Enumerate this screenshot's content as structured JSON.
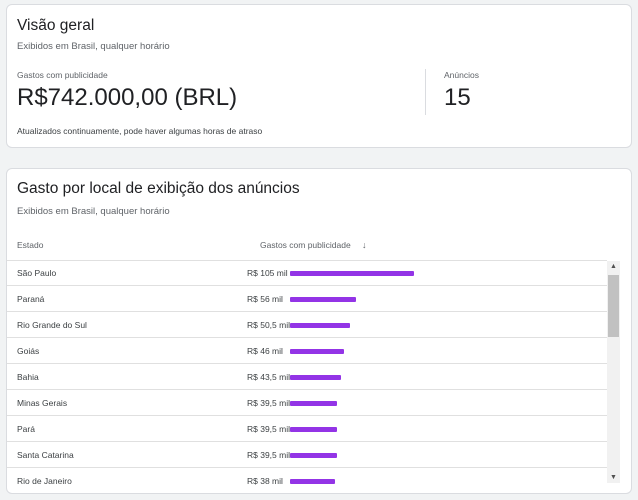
{
  "overview": {
    "title": "Visão geral",
    "subtitle": "Exibidos em Brasil, qualquer horário",
    "spend_label": "Gastos com publicidade",
    "spend_value": "R$742.000,00 (BRL)",
    "ads_label": "Anúncios",
    "ads_value": "15",
    "note": "Atualizados continuamente, pode haver algumas horas de atraso"
  },
  "placement": {
    "title": "Gasto por local de exibição dos anúncios",
    "subtitle": "Exibidos em Brasil, qualquer horário",
    "col_state": "Estado",
    "col_spend": "Gastos com publicidade",
    "sort_icon": "arrow-down-icon",
    "bar_color": "#9334e6",
    "rows": [
      {
        "name": "São Paulo",
        "value_label": "R$ 105 mil",
        "value": 105
      },
      {
        "name": "Paraná",
        "value_label": "R$ 56 mil",
        "value": 56
      },
      {
        "name": "Rio Grande do Sul",
        "value_label": "R$ 50,5 mil",
        "value": 50.5
      },
      {
        "name": "Goiás",
        "value_label": "R$ 46 mil",
        "value": 46
      },
      {
        "name": "Bahia",
        "value_label": "R$ 43,5 mil",
        "value": 43.5
      },
      {
        "name": "Minas Gerais",
        "value_label": "R$ 39,5 mil",
        "value": 39.5
      },
      {
        "name": "Pará",
        "value_label": "R$ 39,5 mil",
        "value": 39.5
      },
      {
        "name": "Santa Catarina",
        "value_label": "R$ 39,5 mil",
        "value": 39.5
      },
      {
        "name": "Rio de Janeiro",
        "value_label": "R$ 38 mil",
        "value": 38
      }
    ]
  }
}
